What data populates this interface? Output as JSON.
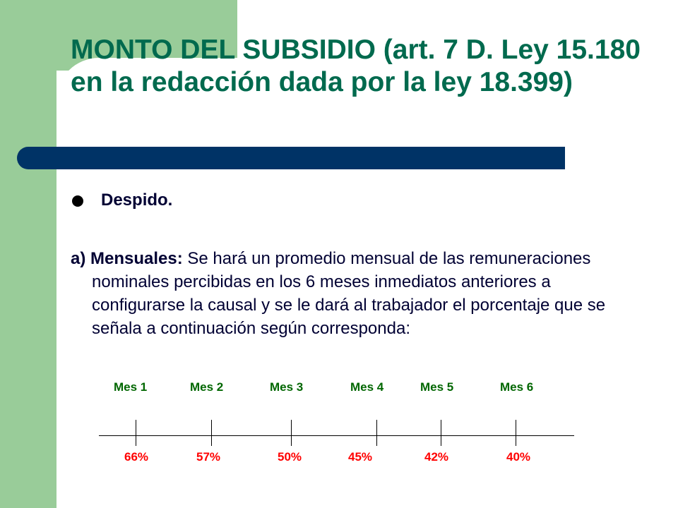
{
  "slide": {
    "title": "MONTO DEL SUBSIDIO (art. 7 D. Ley 15.180 en la redacción dada por la ley 18.399)",
    "bullet": "Despido.",
    "paragraph_lead": "a) Mensuales:",
    "paragraph_body": " Se hará un promedio mensual de las remuneraciones nominales percibidas en los 6 meses inmediatos anteriores a configurarse la causal y se le dará al trabajador el porcentaje que se señala a continuación según corresponda:"
  },
  "timeline": {
    "months": [
      "Mes 1",
      "Mes 2",
      "Mes 3",
      "Mes 4",
      "Mes 5",
      "Mes 6"
    ],
    "percentages": [
      "66%",
      "57%",
      "50%",
      "45%",
      "42%",
      "40%"
    ]
  },
  "colors": {
    "sidebar": "#99cc99",
    "title": "#006a4e",
    "bar": "#003366",
    "months": "#006600",
    "percentages": "#ff0000"
  }
}
